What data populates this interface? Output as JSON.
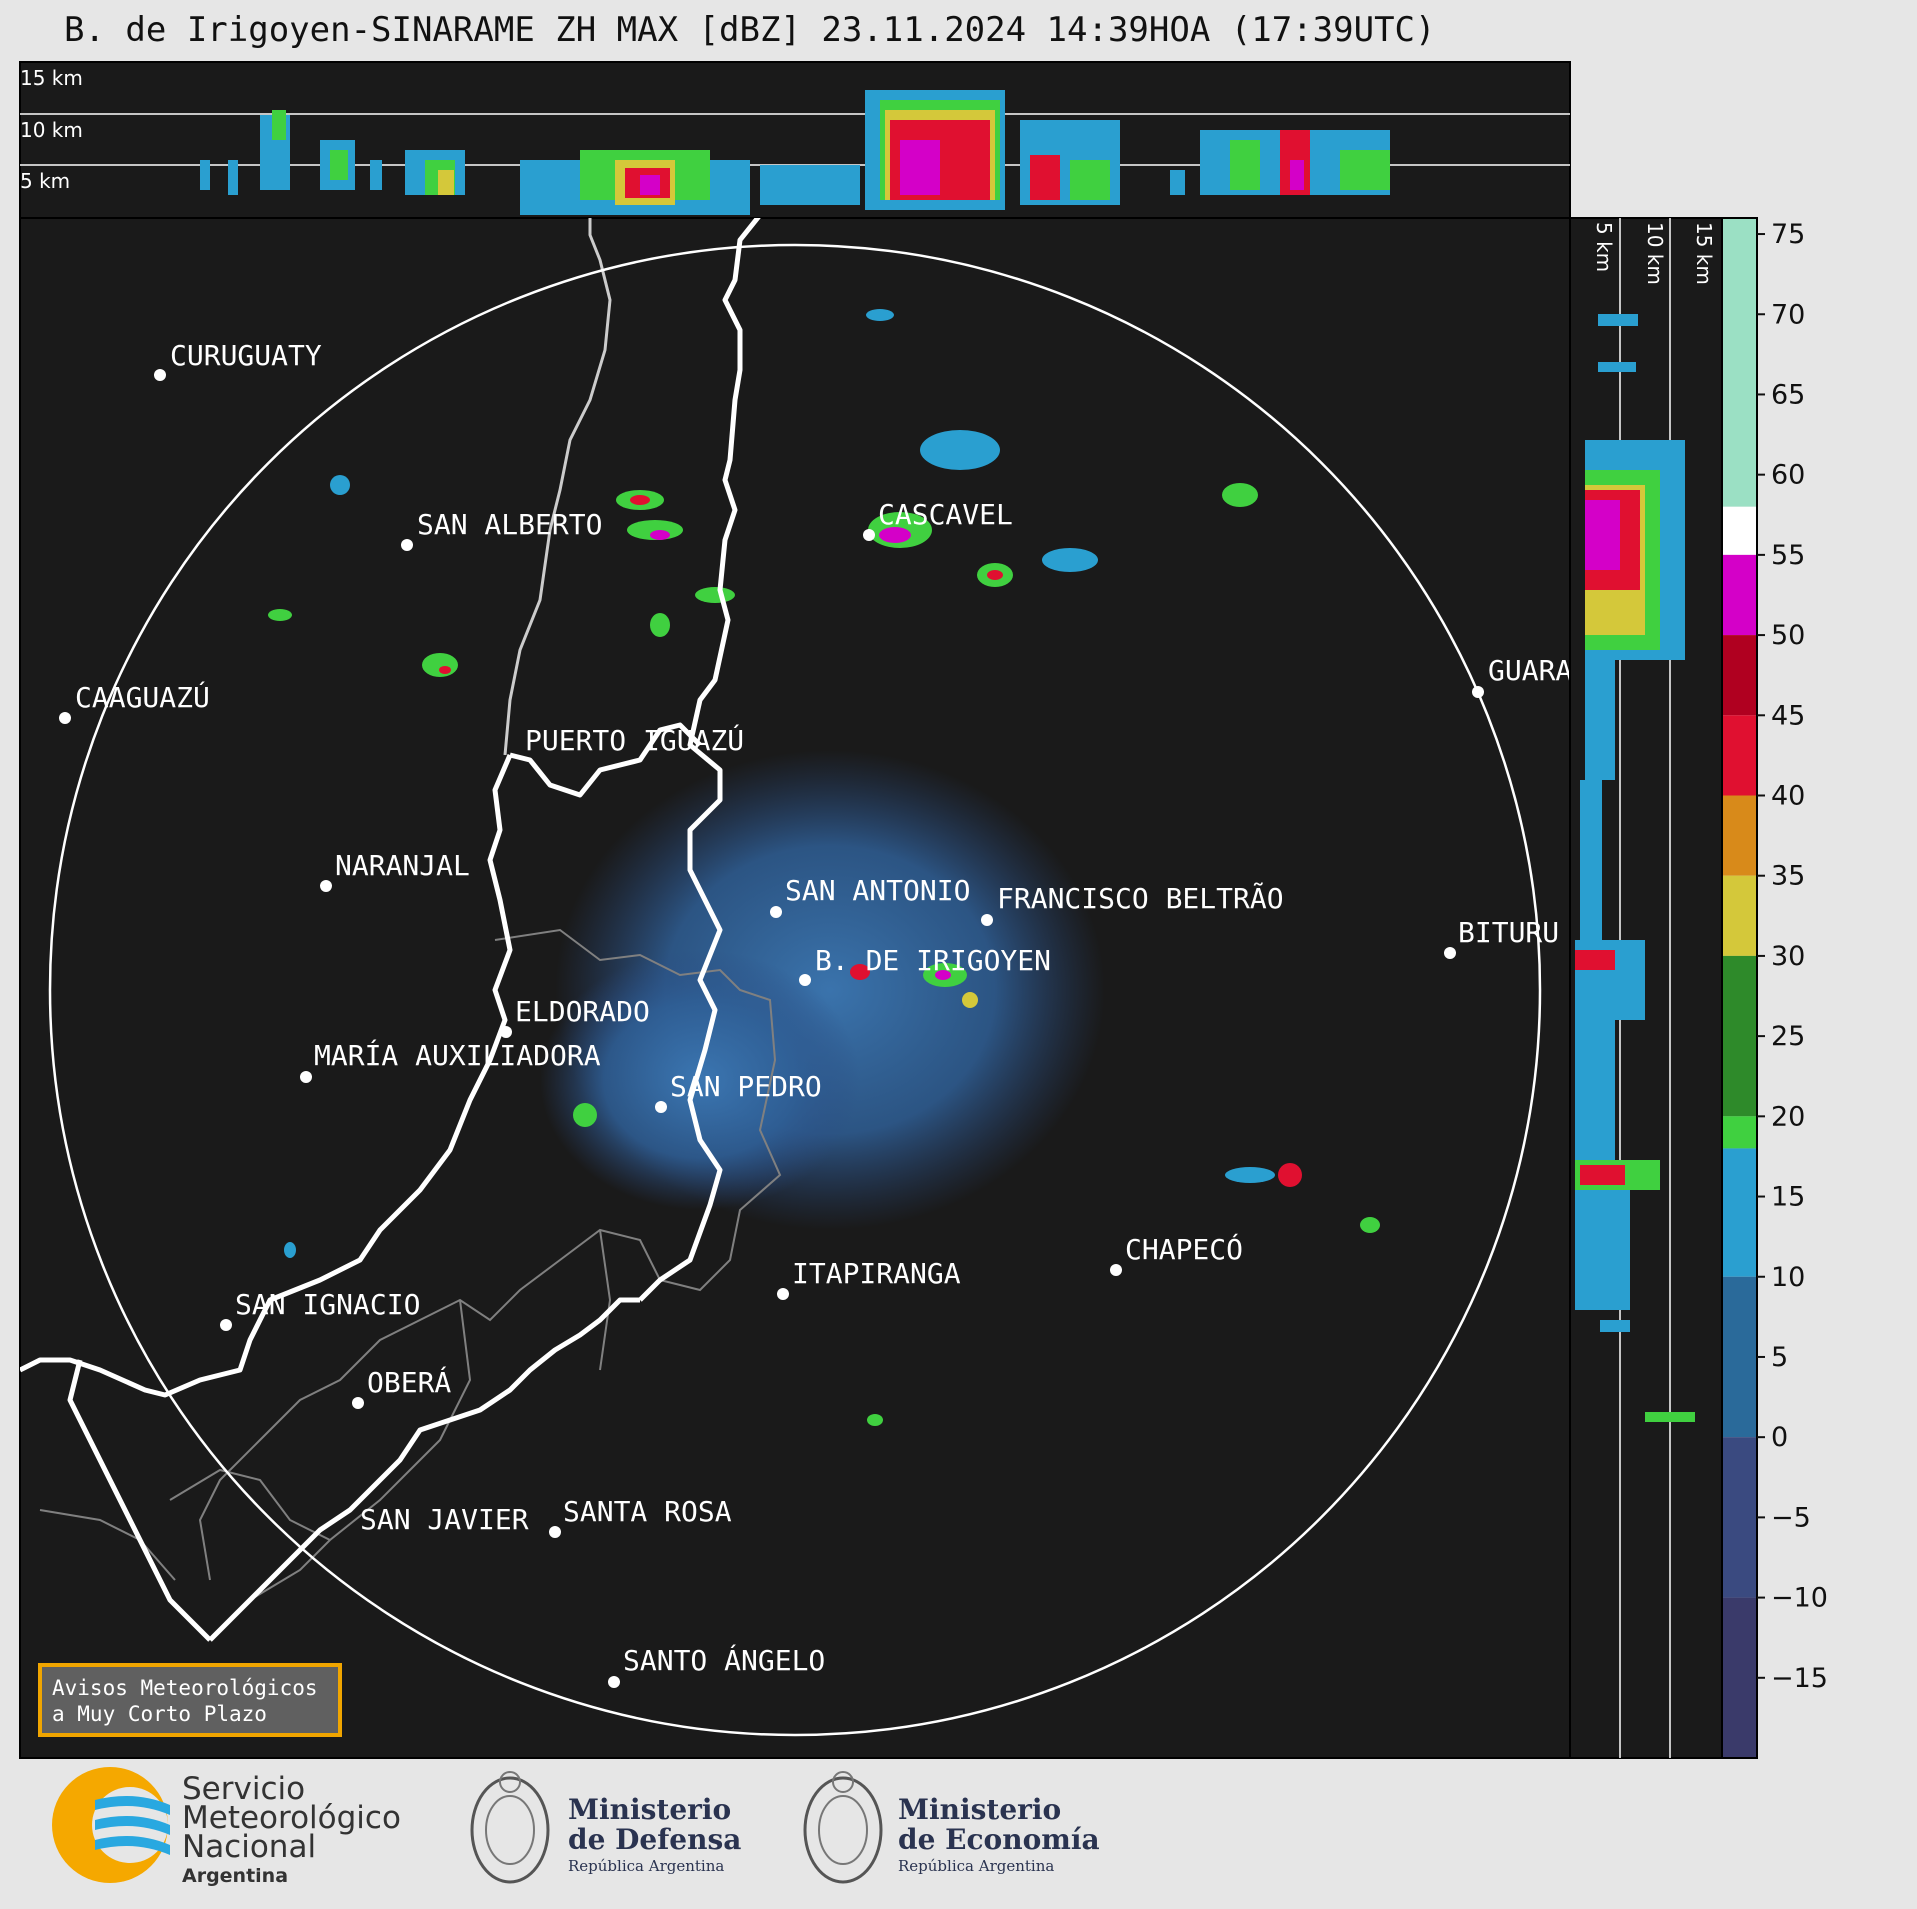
{
  "title": "B. de Irigoyen-SINARAME ZH MAX [dBZ] 23.11.2024 14:39HOA (17:39UTC)",
  "top_panel_altitudes": [
    "15 km",
    "10 km",
    "5 km"
  ],
  "side_panel_altitudes": [
    "5 km",
    "10 km",
    "15 km"
  ],
  "colorbar": {
    "unit": "dBZ",
    "ticks": [
      "75",
      "70",
      "65",
      "60",
      "55",
      "50",
      "45",
      "40",
      "35",
      "30",
      "25",
      "20",
      "15",
      "10",
      "5",
      "0",
      "−5",
      "−10",
      "−15"
    ],
    "stops": [
      {
        "from": 58,
        "to": 76,
        "color": "#9be0c4"
      },
      {
        "from": 55,
        "to": 58,
        "color": "#ffffff"
      },
      {
        "from": 50,
        "to": 55,
        "color": "#d400c8"
      },
      {
        "from": 45,
        "to": 50,
        "color": "#b00020"
      },
      {
        "from": 40,
        "to": 45,
        "color": "#e01030"
      },
      {
        "from": 35,
        "to": 40,
        "color": "#d88a1a"
      },
      {
        "from": 30,
        "to": 35,
        "color": "#d4c83a"
      },
      {
        "from": 20,
        "to": 30,
        "color": "#2e8a2a"
      },
      {
        "from": 18,
        "to": 20,
        "color": "#40d040"
      },
      {
        "from": 10,
        "to": 18,
        "color": "#2a9fd0"
      },
      {
        "from": 0,
        "to": 10,
        "color": "#2a6a9a"
      },
      {
        "from": -10,
        "to": 0,
        "color": "#3a4a80"
      },
      {
        "from": -20,
        "to": -10,
        "color": "#3a3a6a"
      }
    ]
  },
  "cities": [
    {
      "name": "CURUGUATY"
    },
    {
      "name": "SAN ALBERTO"
    },
    {
      "name": "CASCAVEL"
    },
    {
      "name": "CAAGUAZÚ"
    },
    {
      "name": "PUERTO IGUAZÚ"
    },
    {
      "name": "GUARA"
    },
    {
      "name": "NARANJAL"
    },
    {
      "name": "SAN ANTONIO"
    },
    {
      "name": "FRANCISCO BELTRÃO"
    },
    {
      "name": "B. DE IRIGOYEN"
    },
    {
      "name": "BITURU"
    },
    {
      "name": "ELDORADO"
    },
    {
      "name": "MARÍA AUXILIADORA"
    },
    {
      "name": "SAN PEDRO"
    },
    {
      "name": "CHAPECÓ"
    },
    {
      "name": "ITAPIRANGA"
    },
    {
      "name": "SAN IGNACIO"
    },
    {
      "name": "OBERÁ"
    },
    {
      "name": "SAN JAVIER"
    },
    {
      "name": "SANTA ROSA"
    },
    {
      "name": "SANTO ÁNGELO"
    }
  ],
  "alert_box": {
    "line1": "Avisos Meteorológicos",
    "line2": "a Muy Corto Plazo"
  },
  "footer": {
    "smn": {
      "line1": "Servicio",
      "line2": "Meteorológico",
      "line3": "Nacional",
      "line4": "Argentina"
    },
    "defensa": {
      "line1": "Ministerio",
      "line2": "de Defensa",
      "line3": "República Argentina"
    },
    "economia": {
      "line1": "Ministerio",
      "line2": "de Economía",
      "line3": "República Argentina"
    }
  },
  "colors": {
    "panel_bg": "#1a1a1a",
    "page_bg": "#e6e6e6",
    "border_line": "#ffffff",
    "province_line": "#808080",
    "alert_border": "#f0a500"
  }
}
